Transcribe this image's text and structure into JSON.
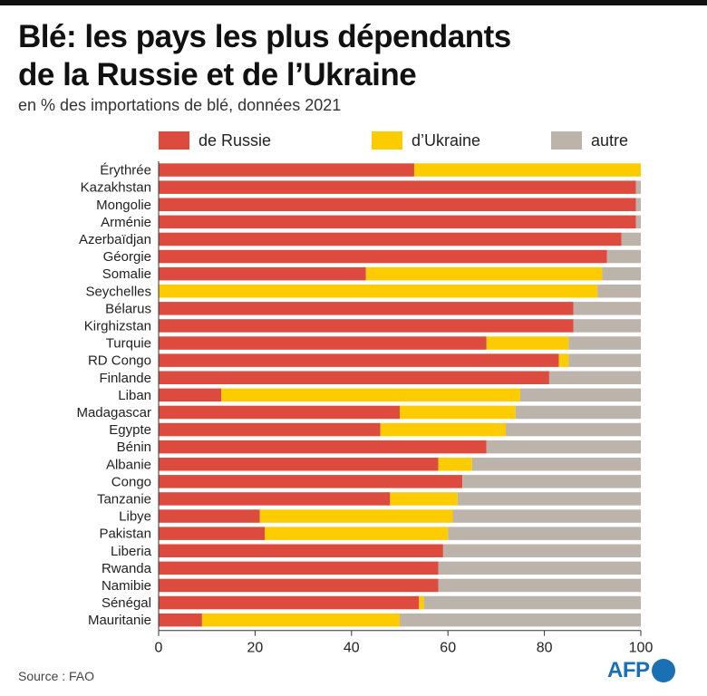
{
  "header": {
    "title_line1": "Blé: les pays les plus dépendants",
    "title_line2": "de la Russie et de l’Ukraine",
    "subtitle": "en % des importations de blé, données 2021"
  },
  "colors": {
    "russie": "#dd4b3e",
    "ukraine": "#fdcc00",
    "autre": "#bcb3aa"
  },
  "footer": {
    "source": "Source : FAO",
    "logo_text": "AFP"
  },
  "chart_data": {
    "type": "bar",
    "orientation": "horizontal",
    "stacked": true,
    "categories": [
      "Érythrée",
      "Kazakhstan",
      "Mongolie",
      "Arménie",
      "Azerbaïdjan",
      "Géorgie",
      "Somalie",
      "Seychelles",
      "Bélarus",
      "Kirghizstan",
      "Turquie",
      "RD Congo",
      "Finlande",
      "Liban",
      "Madagascar",
      "Egypte",
      "Bénin",
      "Albanie",
      "Congo",
      "Tanzanie",
      "Libye",
      "Pakistan",
      "Liberia",
      "Rwanda",
      "Namibie",
      "Sénégal",
      "Mauritanie"
    ],
    "series": [
      {
        "name": "de Russie",
        "color": "#dd4b3e",
        "values": [
          53,
          99,
          99,
          99,
          96,
          93,
          43,
          0,
          86,
          86,
          68,
          83,
          81,
          13,
          50,
          46,
          68,
          58,
          63,
          48,
          21,
          22,
          59,
          58,
          58,
          54,
          9
        ]
      },
      {
        "name": "d’Ukraine",
        "color": "#fdcc00",
        "values": [
          47,
          0,
          0,
          0,
          0,
          0,
          49,
          91,
          0,
          0,
          17,
          2,
          0,
          62,
          24,
          26,
          0,
          7,
          0,
          14,
          40,
          38,
          0,
          0,
          0,
          1,
          41
        ]
      },
      {
        "name": "autre",
        "color": "#bcb3aa",
        "values": [
          0,
          1,
          1,
          1,
          4,
          7,
          8,
          9,
          14,
          14,
          15,
          15,
          19,
          25,
          26,
          28,
          32,
          35,
          37,
          38,
          39,
          40,
          41,
          42,
          42,
          45,
          50
        ]
      }
    ],
    "xlim": [
      0,
      100
    ],
    "xticks": [
      0,
      20,
      40,
      60,
      80,
      100
    ],
    "legend_position": "top",
    "grid": false
  }
}
